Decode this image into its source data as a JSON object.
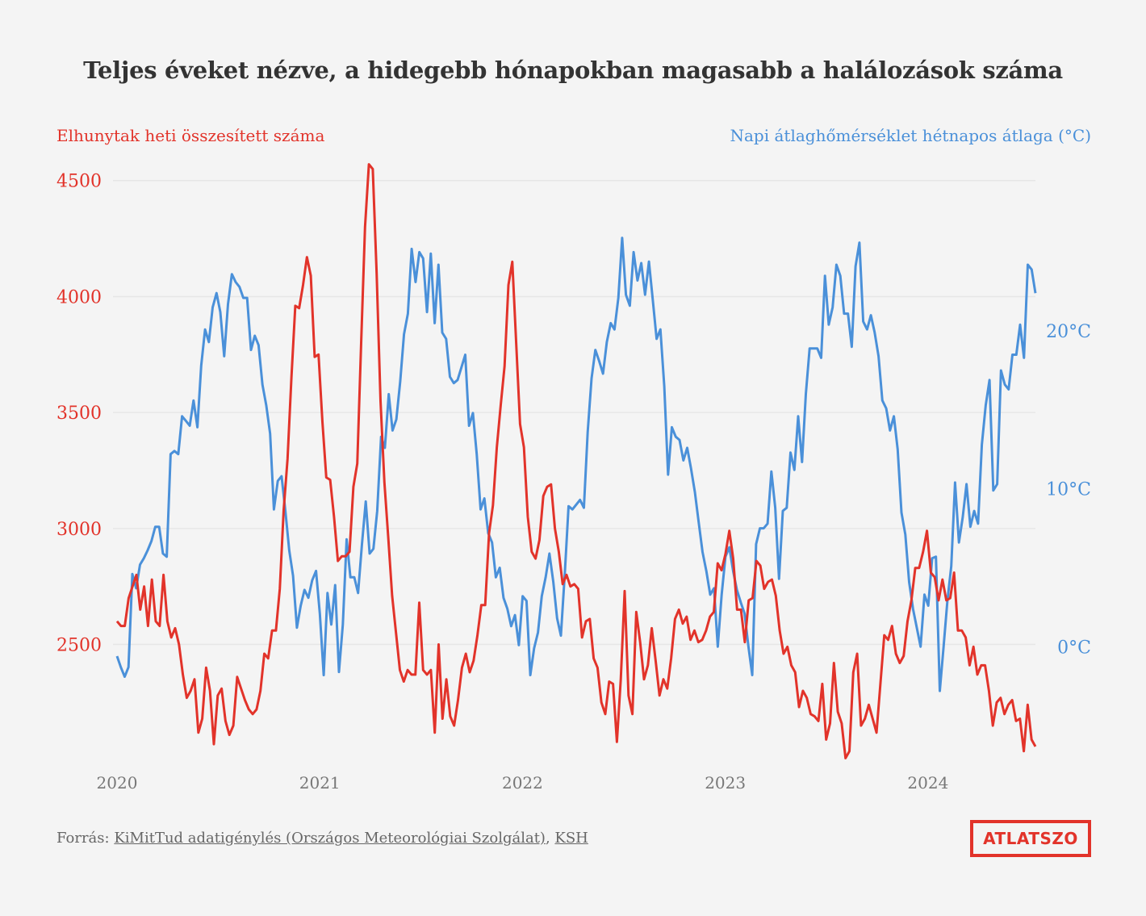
{
  "title": "Teljes éveket nézve, a hidegebb hónapokban magasabb a halálozások száma",
  "source": {
    "prefix": "Forrás: ",
    "link1": "KiMitTud adatigénylés (Országos Meteorológiai Szolgálat)",
    "sep": ", ",
    "link2": "KSH"
  },
  "logo": "ATLATSZO",
  "colors": {
    "deaths": "#e2332a",
    "temp": "#4a90d9",
    "grid": "#e6e6e6",
    "axis": "#777777"
  },
  "chart_data": {
    "type": "line",
    "dual_axis": true,
    "x_range": [
      2020.0,
      2024.53
    ],
    "x_ticks": [
      "2020",
      "2021",
      "2022",
      "2023",
      "2024"
    ],
    "left_axis": {
      "label": "Elhunytak heti összesített száma",
      "range": [
        1980,
        4600
      ],
      "ticks": [
        "2500",
        "3000",
        "3500",
        "4000",
        "4500"
      ]
    },
    "right_axis": {
      "label": "Napi átlaghőmérséklet hétnapos átlaga (°C)",
      "range": [
        -7.5,
        31
      ],
      "ticks": [
        "0°C",
        "10°C",
        "20°C"
      ]
    },
    "grid": true,
    "series": [
      {
        "name": "Elhunytak heti összesített száma",
        "axis": "left",
        "interval": "weekly",
        "values": [
          2600,
          2580,
          2580,
          2700,
          2750,
          2800,
          2650,
          2750,
          2580,
          2780,
          2600,
          2580,
          2800,
          2600,
          2530,
          2570,
          2500,
          2370,
          2270,
          2300,
          2350,
          2120,
          2180,
          2400,
          2300,
          2070,
          2280,
          2310,
          2170,
          2110,
          2150,
          2360,
          2310,
          2260,
          2220,
          2200,
          2220,
          2300,
          2460,
          2440,
          2560,
          2560,
          2740,
          3080,
          3300,
          3650,
          3960,
          3950,
          4050,
          4170,
          4090,
          3740,
          3750,
          3460,
          3220,
          3210,
          3050,
          2860,
          2880,
          2880,
          2900,
          3180,
          3280,
          3800,
          4300,
          4570,
          4550,
          4100,
          3550,
          3200,
          2960,
          2710,
          2550,
          2390,
          2340,
          2390,
          2370,
          2370,
          2680,
          2390,
          2370,
          2390,
          2120,
          2500,
          2180,
          2350,
          2190,
          2150,
          2260,
          2400,
          2460,
          2380,
          2430,
          2540,
          2670,
          2670,
          2980,
          3100,
          3350,
          3530,
          3700,
          4050,
          4150,
          3800,
          3450,
          3350,
          3050,
          2900,
          2870,
          2950,
          3140,
          3180,
          3190,
          3000,
          2900,
          2760,
          2800,
          2750,
          2760,
          2740,
          2530,
          2600,
          2610,
          2440,
          2400,
          2250,
          2200,
          2340,
          2330,
          2080,
          2350,
          2730,
          2280,
          2200,
          2640,
          2510,
          2350,
          2410,
          2570,
          2430,
          2280,
          2350,
          2310,
          2440,
          2610,
          2650,
          2590,
          2620,
          2520,
          2560,
          2510,
          2520,
          2560,
          2620,
          2640,
          2850,
          2820,
          2890,
          2990,
          2870,
          2650,
          2650,
          2510,
          2690,
          2700,
          2860,
          2840,
          2740,
          2770,
          2780,
          2710,
          2560,
          2460,
          2490,
          2410,
          2380,
          2230,
          2300,
          2270,
          2200,
          2190,
          2170,
          2330,
          2090,
          2160,
          2420,
          2210,
          2160,
          2010,
          2040,
          2380,
          2460,
          2150,
          2180,
          2240,
          2180,
          2120,
          2330,
          2540,
          2520,
          2580,
          2460,
          2420,
          2450,
          2600,
          2690,
          2830,
          2830,
          2900,
          2990,
          2810,
          2790,
          2690,
          2780,
          2690,
          2700,
          2810,
          2560,
          2560,
          2530,
          2410,
          2490,
          2370,
          2410,
          2410,
          2300,
          2150,
          2250,
          2270,
          2200,
          2240,
          2260,
          2170,
          2180,
          2040,
          2240,
          2090,
          2060
        ]
      },
      {
        "name": "Napi átlaghőmérséklet hétnapos átlaga (°C)",
        "axis": "right",
        "interval": "weekly",
        "values": [
          -0.6,
          -1.3,
          -1.9,
          -1.3,
          4.6,
          3.7,
          5.2,
          5.6,
          6.1,
          6.7,
          7.6,
          7.6,
          5.9,
          5.7,
          12.2,
          12.4,
          12.2,
          14.6,
          14.3,
          14.0,
          15.6,
          13.9,
          17.8,
          20.1,
          19.3,
          21.5,
          22.4,
          21.2,
          18.4,
          21.7,
          23.6,
          23.1,
          22.8,
          22.1,
          22.1,
          18.8,
          19.7,
          19.1,
          16.6,
          15.3,
          13.5,
          8.7,
          10.5,
          10.8,
          8.6,
          6.1,
          4.5,
          1.2,
          2.6,
          3.6,
          3.1,
          4.2,
          4.8,
          2.1,
          -1.8,
          3.4,
          1.4,
          3.9,
          -1.6,
          1.4,
          6.8,
          4.4,
          4.4,
          3.4,
          6.5,
          9.2,
          5.9,
          6.2,
          8.6,
          13.3,
          12.6,
          16.0,
          13.7,
          14.4,
          16.8,
          19.8,
          21.1,
          25.2,
          23.1,
          25.0,
          24.6,
          21.2,
          24.9,
          20.5,
          24.2,
          19.9,
          19.5,
          17.1,
          16.7,
          16.9,
          17.7,
          18.5,
          14.0,
          14.8,
          12.2,
          8.7,
          9.4,
          7.2,
          6.6,
          4.4,
          5.0,
          3.1,
          2.4,
          1.3,
          2.0,
          0.1,
          3.2,
          2.9,
          -1.8,
          -0.1,
          0.9,
          3.2,
          4.4,
          5.9,
          4.1,
          1.8,
          0.7,
          4.6,
          8.9,
          8.7,
          9.0,
          9.3,
          8.8,
          13.6,
          17.0,
          18.8,
          18.1,
          17.3,
          19.3,
          20.5,
          20.1,
          22.1,
          25.9,
          22.3,
          21.6,
          25.0,
          23.2,
          24.3,
          22.3,
          24.4,
          22.0,
          19.5,
          20.1,
          16.5,
          10.9,
          13.9,
          13.3,
          13.1,
          11.8,
          12.6,
          11.3,
          9.8,
          7.9,
          6.0,
          4.8,
          3.3,
          3.7,
          0.0,
          3.3,
          5.7,
          6.3,
          4.8,
          3.6,
          2.8,
          2.1,
          0.0,
          -1.8,
          6.5,
          7.5,
          7.5,
          7.8,
          11.1,
          8.8,
          4.3,
          8.6,
          8.8,
          12.3,
          11.2,
          14.6,
          11.7,
          16.0,
          18.9,
          18.9,
          18.9,
          18.3,
          23.5,
          20.4,
          21.5,
          24.2,
          23.5,
          21.1,
          21.1,
          19.0,
          24.1,
          25.6,
          20.6,
          20.1,
          21.0,
          19.9,
          18.4,
          15.6,
          15.1,
          13.7,
          14.6,
          12.5,
          8.5,
          7.1,
          4.1,
          2.4,
          1.2,
          0.0,
          3.3,
          2.6,
          5.6,
          5.7,
          -2.8,
          0.0,
          2.9,
          5.1,
          10.4,
          6.6,
          8.2,
          10.3,
          7.6,
          8.6,
          7.8,
          12.8,
          15.3,
          16.9,
          9.9,
          10.3,
          17.5,
          16.6,
          16.3,
          18.5,
          18.5,
          20.4,
          18.3,
          24.2,
          23.9,
          22.4
        ]
      }
    ]
  }
}
